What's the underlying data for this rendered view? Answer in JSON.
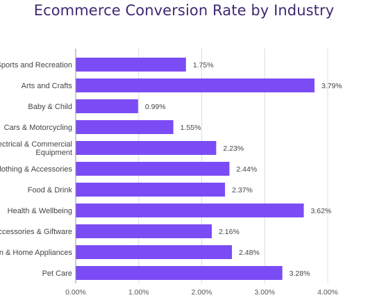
{
  "chart_data": {
    "type": "bar",
    "orientation": "horizontal",
    "title": "Ecommerce Conversion Rate by Industry",
    "categories": [
      [
        "Sports and Recreation"
      ],
      [
        "Arts and Crafts"
      ],
      [
        "Baby & Child"
      ],
      [
        "Cars & Motorcycling"
      ],
      [
        "lectrical & Commercial",
        "Equipment"
      ],
      [
        "Clothing & Accessories"
      ],
      [
        "Food & Drink"
      ],
      [
        "Health & Wellbeing"
      ],
      [
        "Accessories & Giftware"
      ],
      [
        "en & Home Appliances"
      ],
      [
        "Pet Care"
      ]
    ],
    "values": [
      1.75,
      3.79,
      0.99,
      1.55,
      2.23,
      2.44,
      2.37,
      3.62,
      2.16,
      2.48,
      3.28
    ],
    "value_labels": [
      "1.75%",
      "3.79%",
      "0.99%",
      "1.55%",
      "2.23%",
      "2.44%",
      "2.37%",
      "3.62%",
      "2.16%",
      "2.48%",
      "3.28%"
    ],
    "xlim": [
      0,
      4
    ],
    "xticks": [
      0,
      1,
      2,
      3,
      4
    ],
    "xtick_labels": [
      "0.00%",
      "1.00%",
      "2.00%",
      "3.00%",
      "4.00%"
    ],
    "grid": true,
    "colors": {
      "bar": "#7b4cf5",
      "title": "#3d2a73",
      "grid": "#dcdcdc",
      "axis": "#9a9a9a"
    }
  }
}
